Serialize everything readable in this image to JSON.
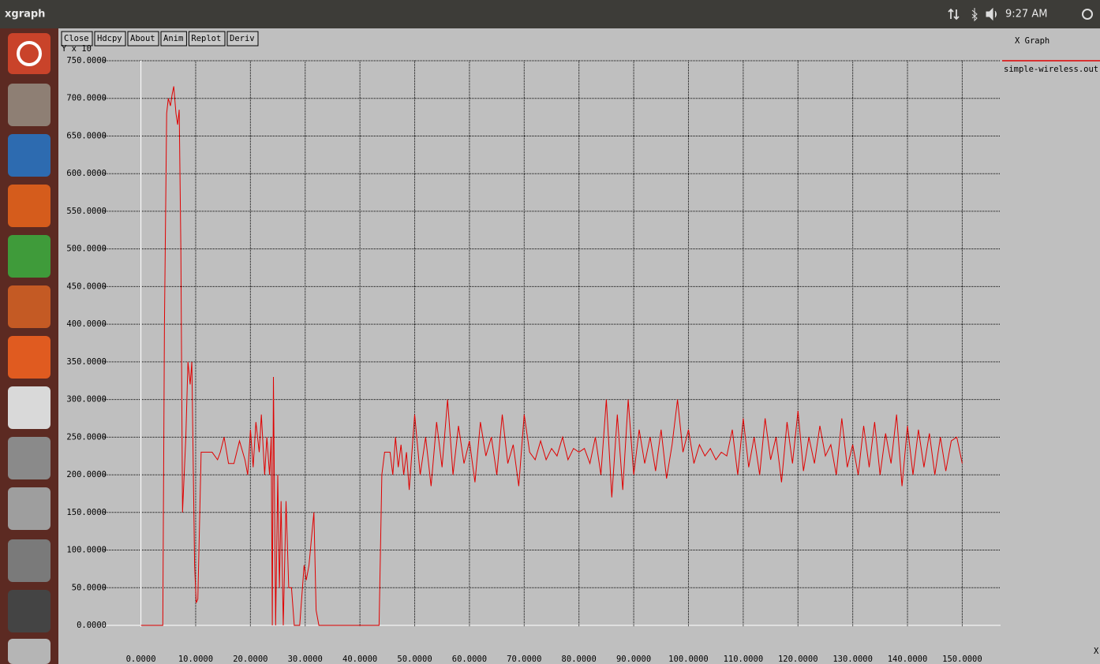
{
  "top_bar": {
    "app_name": "xgraph",
    "clock": "9:27 AM"
  },
  "toolbar": {
    "buttons": [
      "Close",
      "Hdcpy",
      "About",
      "Anim",
      "Replot",
      "Deriv"
    ]
  },
  "chart_data": {
    "type": "line",
    "title": "X Graph",
    "ylabel": "Y x 10",
    "xlabel": "X",
    "x": [
      0,
      4,
      4.3,
      4.7,
      5,
      5.4,
      5.7,
      6,
      6.4,
      6.7,
      7,
      7.3,
      7.6,
      8.2,
      8.6,
      9,
      9.3,
      9.8,
      10.1,
      10.4,
      11,
      12,
      13,
      14,
      14.5,
      15.2,
      16,
      17,
      18,
      19,
      19.5,
      20,
      20.5,
      21,
      21.6,
      22,
      22.6,
      23,
      23.5,
      23.8,
      24,
      24.2,
      24.6,
      25,
      25.3,
      25.6,
      26,
      26.5,
      27,
      27.5,
      28,
      29,
      29.8,
      30.2,
      30.7,
      31.2,
      31.6,
      32,
      32.5,
      43.5,
      44,
      44.5,
      45.5,
      46,
      46.5,
      47,
      47.5,
      48,
      48.5,
      49,
      50,
      51,
      52,
      53,
      54,
      55,
      56,
      57,
      58,
      59,
      60,
      61,
      62,
      63,
      64,
      65,
      66,
      67,
      68,
      69,
      70,
      71,
      72,
      73,
      74,
      75,
      76,
      77,
      78,
      79,
      80,
      81,
      82,
      83,
      84,
      85,
      86,
      87,
      88,
      89,
      90,
      91,
      92,
      93,
      94,
      95,
      96,
      97,
      98,
      99,
      100,
      101,
      102,
      103,
      104,
      105,
      106,
      107,
      108,
      109,
      110,
      111,
      112,
      113,
      114,
      115,
      116,
      117,
      118,
      119,
      120,
      121,
      122,
      123,
      124,
      125,
      126,
      127,
      128,
      129,
      130,
      131,
      132,
      133,
      134,
      135,
      136,
      137,
      138,
      139,
      140,
      141,
      142,
      143,
      144,
      145,
      146,
      147,
      148,
      149,
      150
    ],
    "series": [
      {
        "name": "simple-wireless.out",
        "color": "#e00000",
        "values": [
          0,
          0,
          400,
          680,
          700,
          690,
          705,
          716,
          680,
          665,
          685,
          500,
          150,
          250,
          350,
          320,
          350,
          80,
          30,
          35,
          230,
          230,
          230,
          220,
          230,
          250,
          215,
          215,
          245,
          220,
          200,
          260,
          210,
          270,
          230,
          280,
          200,
          250,
          200,
          250,
          0,
          330,
          0,
          200,
          50,
          165,
          0,
          165,
          50,
          50,
          0,
          0,
          80,
          60,
          80,
          120,
          150,
          20,
          0,
          0,
          200,
          230,
          230,
          200,
          250,
          210,
          240,
          200,
          230,
          180,
          280,
          200,
          250,
          185,
          270,
          210,
          300,
          200,
          265,
          215,
          245,
          190,
          270,
          225,
          250,
          200,
          280,
          215,
          240,
          185,
          280,
          230,
          220,
          245,
          220,
          235,
          225,
          250,
          220,
          235,
          230,
          235,
          215,
          250,
          200,
          300,
          170,
          280,
          180,
          300,
          200,
          260,
          215,
          250,
          205,
          260,
          195,
          240,
          300,
          230,
          260,
          215,
          240,
          225,
          235,
          220,
          230,
          225,
          260,
          200,
          275,
          210,
          250,
          200,
          275,
          220,
          250,
          190,
          270,
          215,
          285,
          205,
          250,
          215,
          265,
          225,
          240,
          200,
          275,
          210,
          240,
          200,
          265,
          210,
          270,
          200,
          255,
          215,
          280,
          185,
          265,
          200,
          260,
          210,
          255,
          200,
          250,
          205,
          245,
          250,
          215
        ]
      }
    ],
    "xlim": [
      -7,
      157
    ],
    "ylim": [
      0,
      750
    ],
    "xticks": [
      {
        "value": 0,
        "label": "0.0000"
      },
      {
        "value": 10,
        "label": "10.0000"
      },
      {
        "value": 20,
        "label": "20.0000"
      },
      {
        "value": 30,
        "label": "30.0000"
      },
      {
        "value": 40,
        "label": "40.0000"
      },
      {
        "value": 50,
        "label": "50.0000"
      },
      {
        "value": 60,
        "label": "60.0000"
      },
      {
        "value": 70,
        "label": "70.0000"
      },
      {
        "value": 80,
        "label": "80.0000"
      },
      {
        "value": 90,
        "label": "90.0000"
      },
      {
        "value": 100,
        "label": "100.0000"
      },
      {
        "value": 110,
        "label": "110.0000"
      },
      {
        "value": 120,
        "label": "120.0000"
      },
      {
        "value": 130,
        "label": "130.0000"
      },
      {
        "value": 140,
        "label": "140.0000"
      },
      {
        "value": 150,
        "label": "150.0000"
      }
    ],
    "yticks": [
      {
        "value": 0,
        "label": "0.0000"
      },
      {
        "value": 50,
        "label": "50.0000"
      },
      {
        "value": 100,
        "label": "100.0000"
      },
      {
        "value": 150,
        "label": "150.0000"
      },
      {
        "value": 200,
        "label": "200.0000"
      },
      {
        "value": 250,
        "label": "250.0000"
      },
      {
        "value": 300,
        "label": "300.0000"
      },
      {
        "value": 350,
        "label": "350.0000"
      },
      {
        "value": 400,
        "label": "400.0000"
      },
      {
        "value": 450,
        "label": "450.0000"
      },
      {
        "value": 500,
        "label": "500.0000"
      },
      {
        "value": 550,
        "label": "550.0000"
      },
      {
        "value": 600,
        "label": "600.0000"
      },
      {
        "value": 650,
        "label": "650.0000"
      },
      {
        "value": 700,
        "label": "700.0000"
      },
      {
        "value": 750,
        "label": "750.0000"
      }
    ],
    "grid": true
  }
}
